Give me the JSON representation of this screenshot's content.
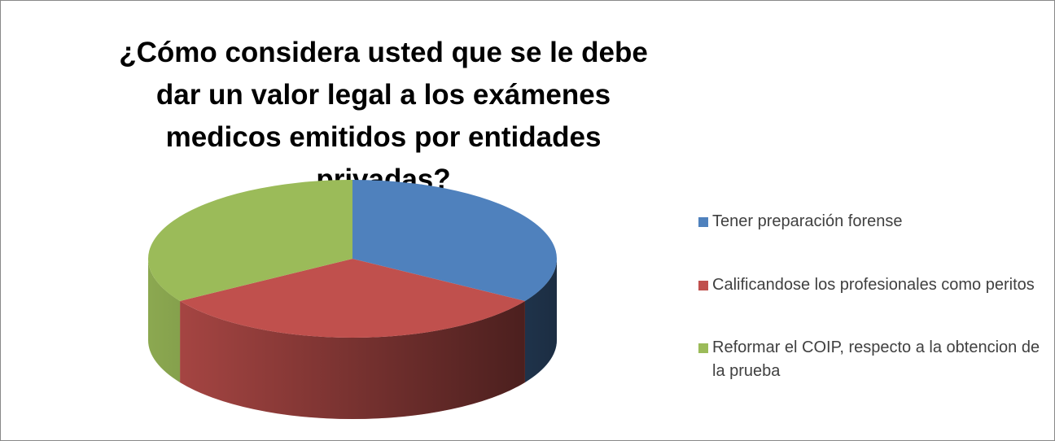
{
  "chart_data": {
    "type": "pie",
    "title": "¿Cómo considera usted que se le debe dar un valor legal a los exámenes medicos emitidos por entidades privadas?",
    "categories": [
      "Tener preparación forense",
      "Calificandose los profesionales como peritos",
      "Reformar el COIP, respecto a la obtencion de la prueba"
    ],
    "values": [
      34,
      32,
      34
    ],
    "colors": [
      "#4f81bd",
      "#c0504d",
      "#9bbb59"
    ],
    "legend": "right"
  }
}
